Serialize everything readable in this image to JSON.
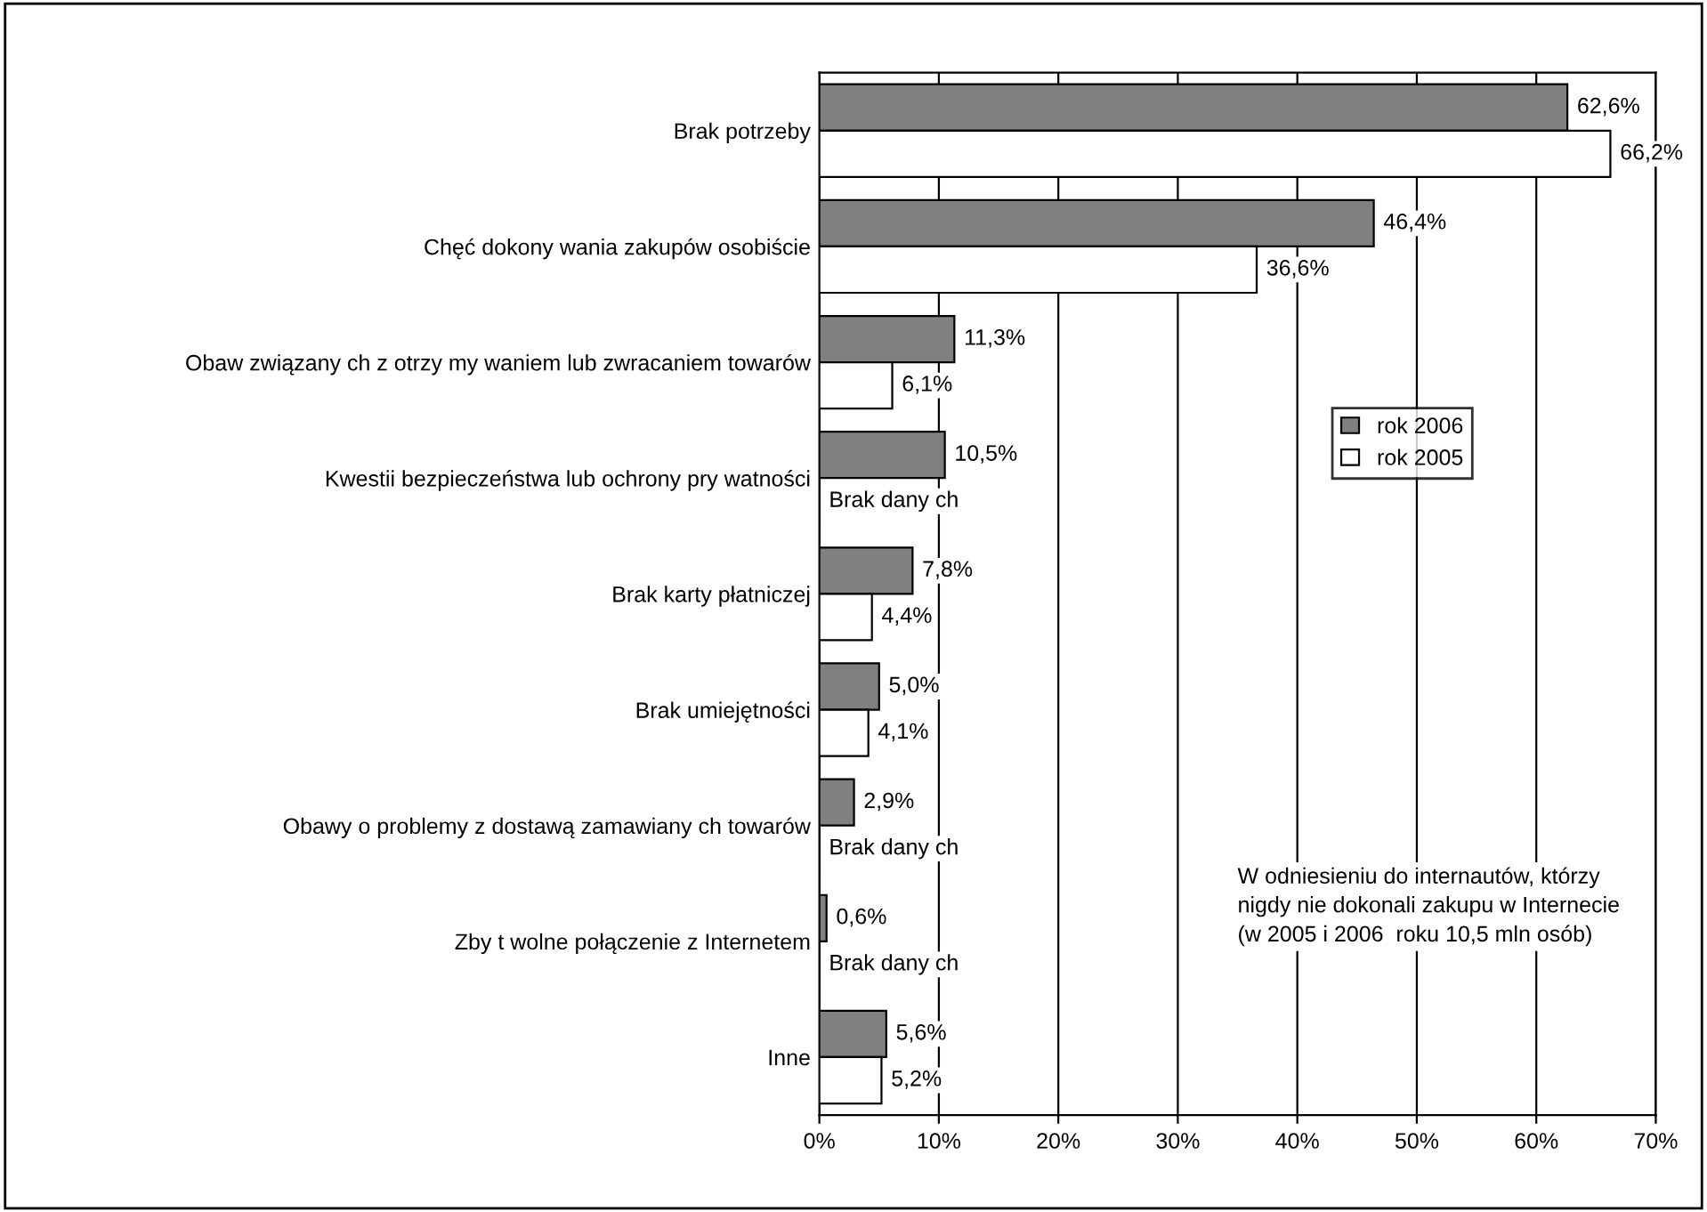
{
  "chart_data": {
    "type": "bar",
    "orientation": "horizontal",
    "categories": [
      "Brak potrzeby",
      "Chęć dokony wania zakupów osobiście",
      "Obaw związany ch z otrzy my waniem lub zwracaniem towarów",
      "Kwestii bezpieczeństwa lub ochrony pry watności",
      "Brak karty płatniczej",
      "Brak umiejętności",
      "Obawy o problemy z dostawą zamawiany ch towarów",
      "Zby t wolne połączenie z Internetem",
      "Inne"
    ],
    "series": [
      {
        "name": "rok 2006",
        "color": "#808080",
        "values": [
          62.6,
          46.4,
          11.3,
          10.5,
          7.8,
          5.0,
          2.9,
          0.6,
          5.6
        ],
        "value_labels": [
          "62,6%",
          "46,4%",
          "11,3%",
          "10,5%",
          "7,8%",
          "5,0%",
          "2,9%",
          "0,6%",
          "5,6%"
        ]
      },
      {
        "name": "rok 2005",
        "color": "#ffffff",
        "values": [
          66.2,
          36.6,
          6.1,
          null,
          4.4,
          4.1,
          null,
          null,
          5.2
        ],
        "value_labels": [
          "66,2%",
          "36,6%",
          "6,1%",
          "Brak dany ch",
          "4,4%",
          "4,1%",
          "Brak dany ch",
          "Brak dany ch",
          "5,2%"
        ]
      }
    ],
    "xlim": [
      0,
      70
    ],
    "xticks": [
      {
        "value": 0,
        "label": "0%"
      },
      {
        "value": 10,
        "label": "10%"
      },
      {
        "value": 20,
        "label": "20%"
      },
      {
        "value": 30,
        "label": "30%"
      },
      {
        "value": 40,
        "label": "40%"
      },
      {
        "value": 50,
        "label": "50%"
      },
      {
        "value": 60,
        "label": "60%"
      },
      {
        "value": 70,
        "label": "70%"
      }
    ],
    "grid": "x",
    "legend": "right",
    "annotations": [
      "W odniesieniu do internautów, którzy\nnigdy nie dokonali zakupu w Internecie\n(w 2005 i 2006  roku 10,5 mln osób)"
    ]
  }
}
